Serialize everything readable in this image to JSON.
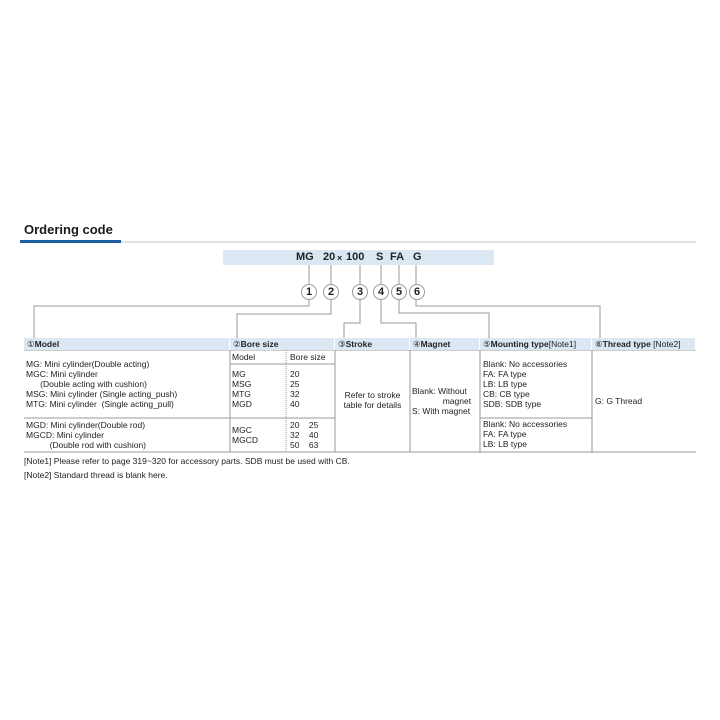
{
  "title": "Ordering code",
  "code": {
    "parts": [
      "MG",
      "20",
      "×",
      "100",
      "S",
      "FA",
      "G"
    ]
  },
  "circles": [
    "1",
    "2",
    "3",
    "4",
    "5",
    "6"
  ],
  "headers": [
    {
      "num": "①",
      "label": "Model",
      "note": ""
    },
    {
      "num": "②",
      "label": "Bore size",
      "note": ""
    },
    {
      "num": "③",
      "label": "Stroke",
      "note": ""
    },
    {
      "num": "④",
      "label": "Magnet",
      "note": ""
    },
    {
      "num": "⑤",
      "label": "Mounting type",
      "note": "[Note1]"
    },
    {
      "num": "⑥",
      "label": "Thread type",
      "note": " [Note2]"
    }
  ],
  "model": {
    "group1": "MG: Mini cylinder(Double acting)\nMGC: Mini cylinder\n      (Double acting with cushion)\nMSG: Mini cylinder (Single acting_push)\nMTG: Mini cylinder  (Single acting_pull)",
    "group2": "MGD: Mini cylinder(Double rod)\nMGCD: Mini cylinder\n          (Double rod with cushion)"
  },
  "bore": {
    "col_model": "Model",
    "col_bore": "Bore size",
    "group1_models": "MG\nMSG\nMTG\nMGD",
    "group1_sizes": "20\n25\n32\n40",
    "group2_models": "MGC\nMGCD",
    "group2_sizes": "20    25\n32    40\n50    63"
  },
  "stroke": "Refer to stroke\ntable for details",
  "magnet": "Blank: Without\n             magnet\nS: With magnet",
  "mounting": {
    "group1": "Blank: No accessories\nFA: FA type\nLB: LB type\nCB: CB type\nSDB: SDB type",
    "group2": "Blank: No accessories\nFA: FA type\nLB: LB type"
  },
  "thread": "G: G Thread",
  "notes": [
    "[Note1]  Please refer to page 319~320 for accessory parts. SDB must be used with CB.",
    "[Note2]  Standard thread is blank here."
  ]
}
